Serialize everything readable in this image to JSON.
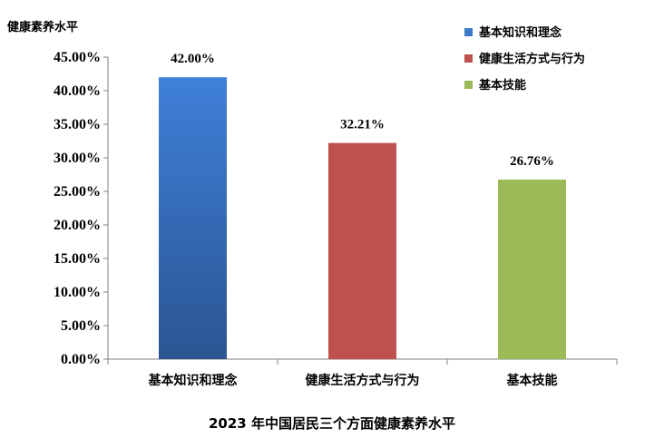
{
  "chart_data": {
    "type": "bar",
    "title": "2023 年中国居民三个方面健康素养水平",
    "ylabel": "健康素养水平",
    "xlabel": "",
    "categories": [
      "基本知识和理念",
      "健康生活方式与行为",
      "基本技能"
    ],
    "values": [
      42.0,
      32.21,
      26.76
    ],
    "value_labels": [
      "42.00%",
      "32.21%",
      "26.76%"
    ],
    "colors": [
      "#3f78c8",
      "#c0504d",
      "#9bbb59"
    ],
    "ylim": [
      0,
      45
    ],
    "y_ticks": [
      "0.00%",
      "5.00%",
      "10.00%",
      "15.00%",
      "20.00%",
      "25.00%",
      "30.00%",
      "35.00%",
      "40.00%",
      "45.00%"
    ],
    "grid": false,
    "legend": {
      "placement": "top-right",
      "items": [
        "基本知识和理念",
        "健康生活方式与行为",
        "基本技能"
      ]
    }
  }
}
